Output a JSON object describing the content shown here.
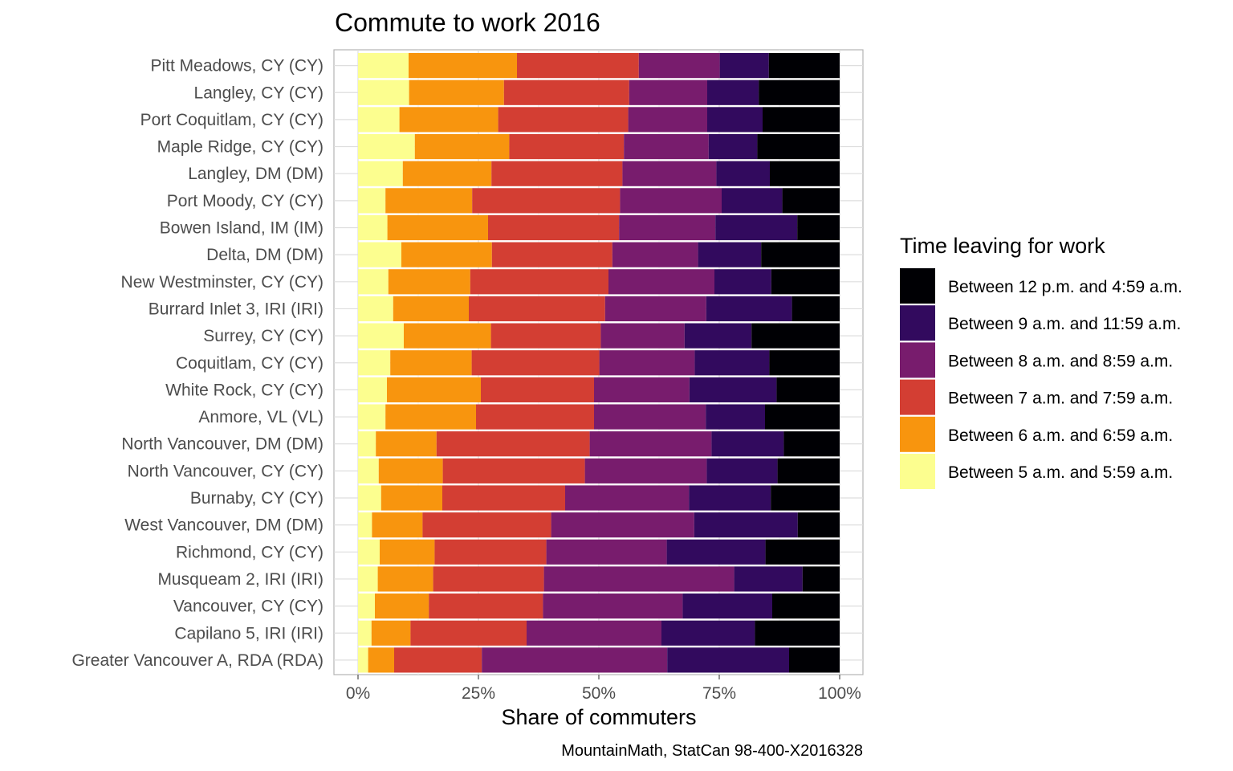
{
  "chart_data": {
    "type": "bar",
    "orientation": "horizontal",
    "stacked": true,
    "title": "Commute to work 2016",
    "xlabel": "Share of commuters",
    "ylabel": "",
    "caption": "MountainMath, StatCan 98-400-X2016328",
    "xlim": [
      0,
      1
    ],
    "x_ticks": [
      "0%",
      "25%",
      "50%",
      "75%",
      "100%"
    ],
    "x_tick_values": [
      0,
      0.25,
      0.5,
      0.75,
      1.0
    ],
    "grid": true,
    "legend": {
      "title": "Time leaving for work",
      "placement": "right",
      "entries": [
        {
          "label": "Between 12 p.m. and 4:59 a.m.",
          "color": "#000004"
        },
        {
          "label": "Between 9 a.m. and 11:59 a.m.",
          "color": "#320a5e"
        },
        {
          "label": "Between 8 a.m. and 8:59 a.m.",
          "color": "#781c6d"
        },
        {
          "label": "Between 7 a.m. and 7:59 a.m.",
          "color": "#d33e33"
        },
        {
          "label": "Between 6 a.m. and 6:59 a.m.",
          "color": "#f8950e"
        },
        {
          "label": "Between 5 a.m. and 5:59 a.m.",
          "color": "#fcfe8f"
        }
      ]
    },
    "categories": [
      "Pitt Meadows, CY (CY)",
      "Langley, CY (CY)",
      "Port Coquitlam, CY (CY)",
      "Maple Ridge, CY (CY)",
      "Langley, DM (DM)",
      "Port Moody, CY (CY)",
      "Bowen Island, IM (IM)",
      "Delta, DM (DM)",
      "New Westminster, CY (CY)",
      "Burrard Inlet 3, IRI (IRI)",
      "Surrey, CY (CY)",
      "Coquitlam, CY (CY)",
      "White Rock, CY (CY)",
      "Anmore, VL (VL)",
      "North Vancouver, DM (DM)",
      "North Vancouver, CY (CY)",
      "Burnaby, CY (CY)",
      "West Vancouver, DM (DM)",
      "Richmond, CY (CY)",
      "Musqueam 2, IRI (IRI)",
      "Vancouver, CY (CY)",
      "Capilano 5, IRI (IRI)",
      "Greater Vancouver A, RDA (RDA)"
    ],
    "series": [
      {
        "name": "Between 5 a.m. and 5:59 a.m.",
        "color": "#fcfe8f",
        "values": [
          0.105,
          0.106,
          0.086,
          0.118,
          0.093,
          0.057,
          0.061,
          0.09,
          0.063,
          0.073,
          0.095,
          0.067,
          0.06,
          0.057,
          0.037,
          0.043,
          0.048,
          0.029,
          0.045,
          0.041,
          0.035,
          0.028,
          0.021
        ]
      },
      {
        "name": "Between 6 a.m. and 6:59 a.m.",
        "color": "#f8950e",
        "values": [
          0.225,
          0.197,
          0.205,
          0.196,
          0.184,
          0.18,
          0.209,
          0.188,
          0.17,
          0.157,
          0.181,
          0.169,
          0.195,
          0.188,
          0.126,
          0.133,
          0.127,
          0.105,
          0.114,
          0.115,
          0.112,
          0.081,
          0.054
        ]
      },
      {
        "name": "Between 7 a.m. and 7:59 a.m.",
        "color": "#d33e33",
        "values": [
          0.253,
          0.26,
          0.27,
          0.238,
          0.272,
          0.307,
          0.272,
          0.25,
          0.287,
          0.283,
          0.228,
          0.265,
          0.235,
          0.245,
          0.318,
          0.295,
          0.255,
          0.267,
          0.232,
          0.23,
          0.237,
          0.241,
          0.182
        ]
      },
      {
        "name": "Between 8 a.m. and 8:59 a.m.",
        "color": "#781c6d",
        "values": [
          0.168,
          0.162,
          0.164,
          0.176,
          0.195,
          0.211,
          0.2,
          0.178,
          0.22,
          0.21,
          0.174,
          0.198,
          0.198,
          0.232,
          0.253,
          0.253,
          0.257,
          0.297,
          0.25,
          0.395,
          0.29,
          0.28,
          0.385
        ]
      },
      {
        "name": "Between 9 a.m. and 11:59 a.m.",
        "color": "#320a5e",
        "values": [
          0.102,
          0.107,
          0.115,
          0.101,
          0.111,
          0.126,
          0.17,
          0.131,
          0.118,
          0.178,
          0.139,
          0.155,
          0.181,
          0.123,
          0.15,
          0.147,
          0.17,
          0.215,
          0.205,
          0.142,
          0.186,
          0.194,
          0.253
        ]
      },
      {
        "name": "Between 12 p.m. and 4:59 a.m.",
        "color": "#000004",
        "values": [
          0.147,
          0.168,
          0.16,
          0.171,
          0.145,
          0.119,
          0.088,
          0.163,
          0.142,
          0.099,
          0.183,
          0.146,
          0.131,
          0.155,
          0.116,
          0.129,
          0.143,
          0.087,
          0.154,
          0.077,
          0.14,
          0.176,
          0.105
        ]
      }
    ]
  }
}
